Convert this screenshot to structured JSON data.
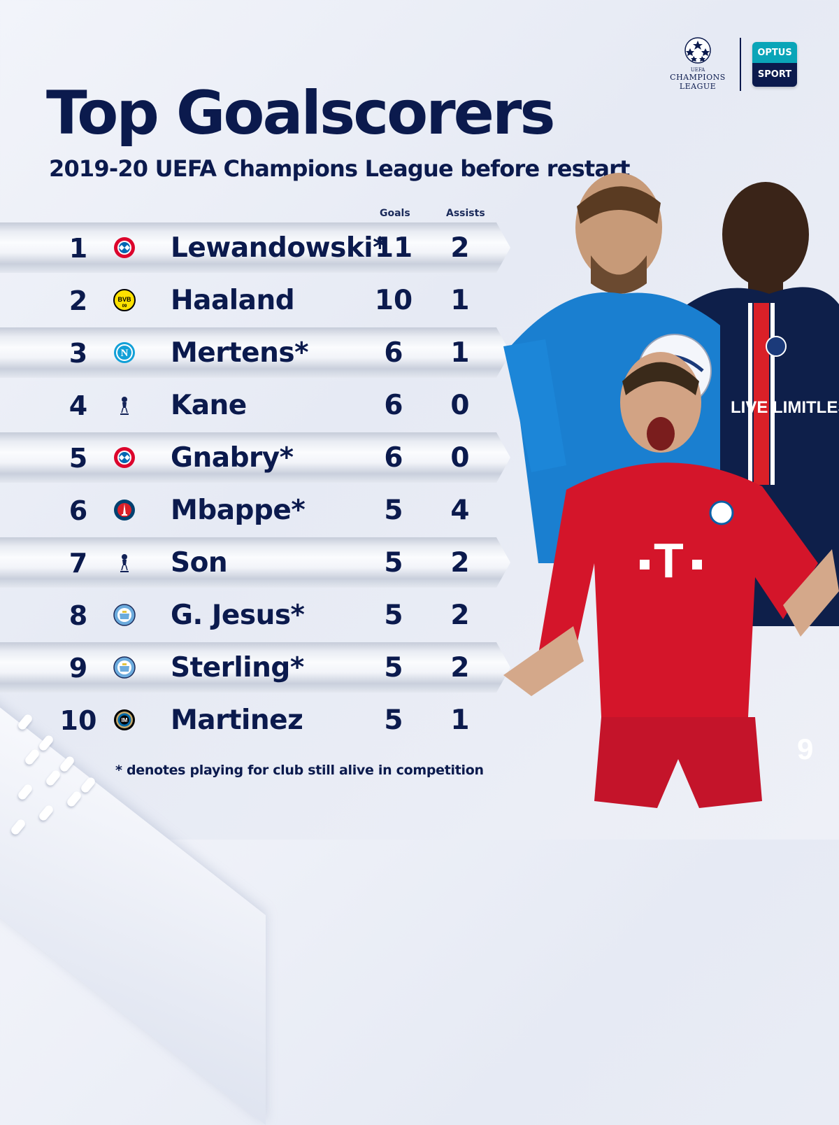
{
  "header": {
    "title": "Top Goalscorers",
    "subtitle": "2019-20 UEFA Champions League before restart"
  },
  "logos": {
    "ucl_small": "UEFA",
    "ucl_line1": "CHAMPIONS",
    "ucl_line2": "LEAGUE",
    "optus_top": "OPTUS",
    "optus_bottom": "SPORT"
  },
  "columns": {
    "goals": "Goals",
    "assists": "Assists"
  },
  "rows": [
    {
      "rank": "1",
      "crest": "bayern-crest-icon",
      "name": "Lewandowski*",
      "goals": "11",
      "assists": "2"
    },
    {
      "rank": "2",
      "crest": "dortmund-crest-icon",
      "name": "Haaland",
      "goals": "10",
      "assists": "1"
    },
    {
      "rank": "3",
      "crest": "napoli-crest-icon",
      "name": "Mertens*",
      "goals": "6",
      "assists": "1"
    },
    {
      "rank": "4",
      "crest": "tottenham-crest-icon",
      "name": "Kane",
      "goals": "6",
      "assists": "0"
    },
    {
      "rank": "5",
      "crest": "bayern-crest-icon",
      "name": "Gnabry*",
      "goals": "6",
      "assists": "0"
    },
    {
      "rank": "6",
      "crest": "psg-crest-icon",
      "name": "Mbappe*",
      "goals": "5",
      "assists": "4"
    },
    {
      "rank": "7",
      "crest": "tottenham-crest-icon",
      "name": "Son",
      "goals": "5",
      "assists": "2"
    },
    {
      "rank": "8",
      "crest": "mancity-crest-icon",
      "name": "G. Jesus*",
      "goals": "5",
      "assists": "2"
    },
    {
      "rank": "9",
      "crest": "mancity-crest-icon",
      "name": "Sterling*",
      "goals": "5",
      "assists": "2"
    },
    {
      "rank": "10",
      "crest": "inter-crest-icon",
      "name": "Martinez",
      "goals": "5",
      "assists": "1"
    }
  ],
  "footnote": "* denotes playing for club still alive in competition",
  "colors": {
    "navy": "#0b1a4d",
    "bayern_red": "#dc052d",
    "bvb_yellow": "#fde100",
    "napoli_blue": "#12a0d7",
    "psg_navy": "#004170",
    "city_blue": "#6cabdd",
    "optus_teal": "#0aa5b8"
  }
}
